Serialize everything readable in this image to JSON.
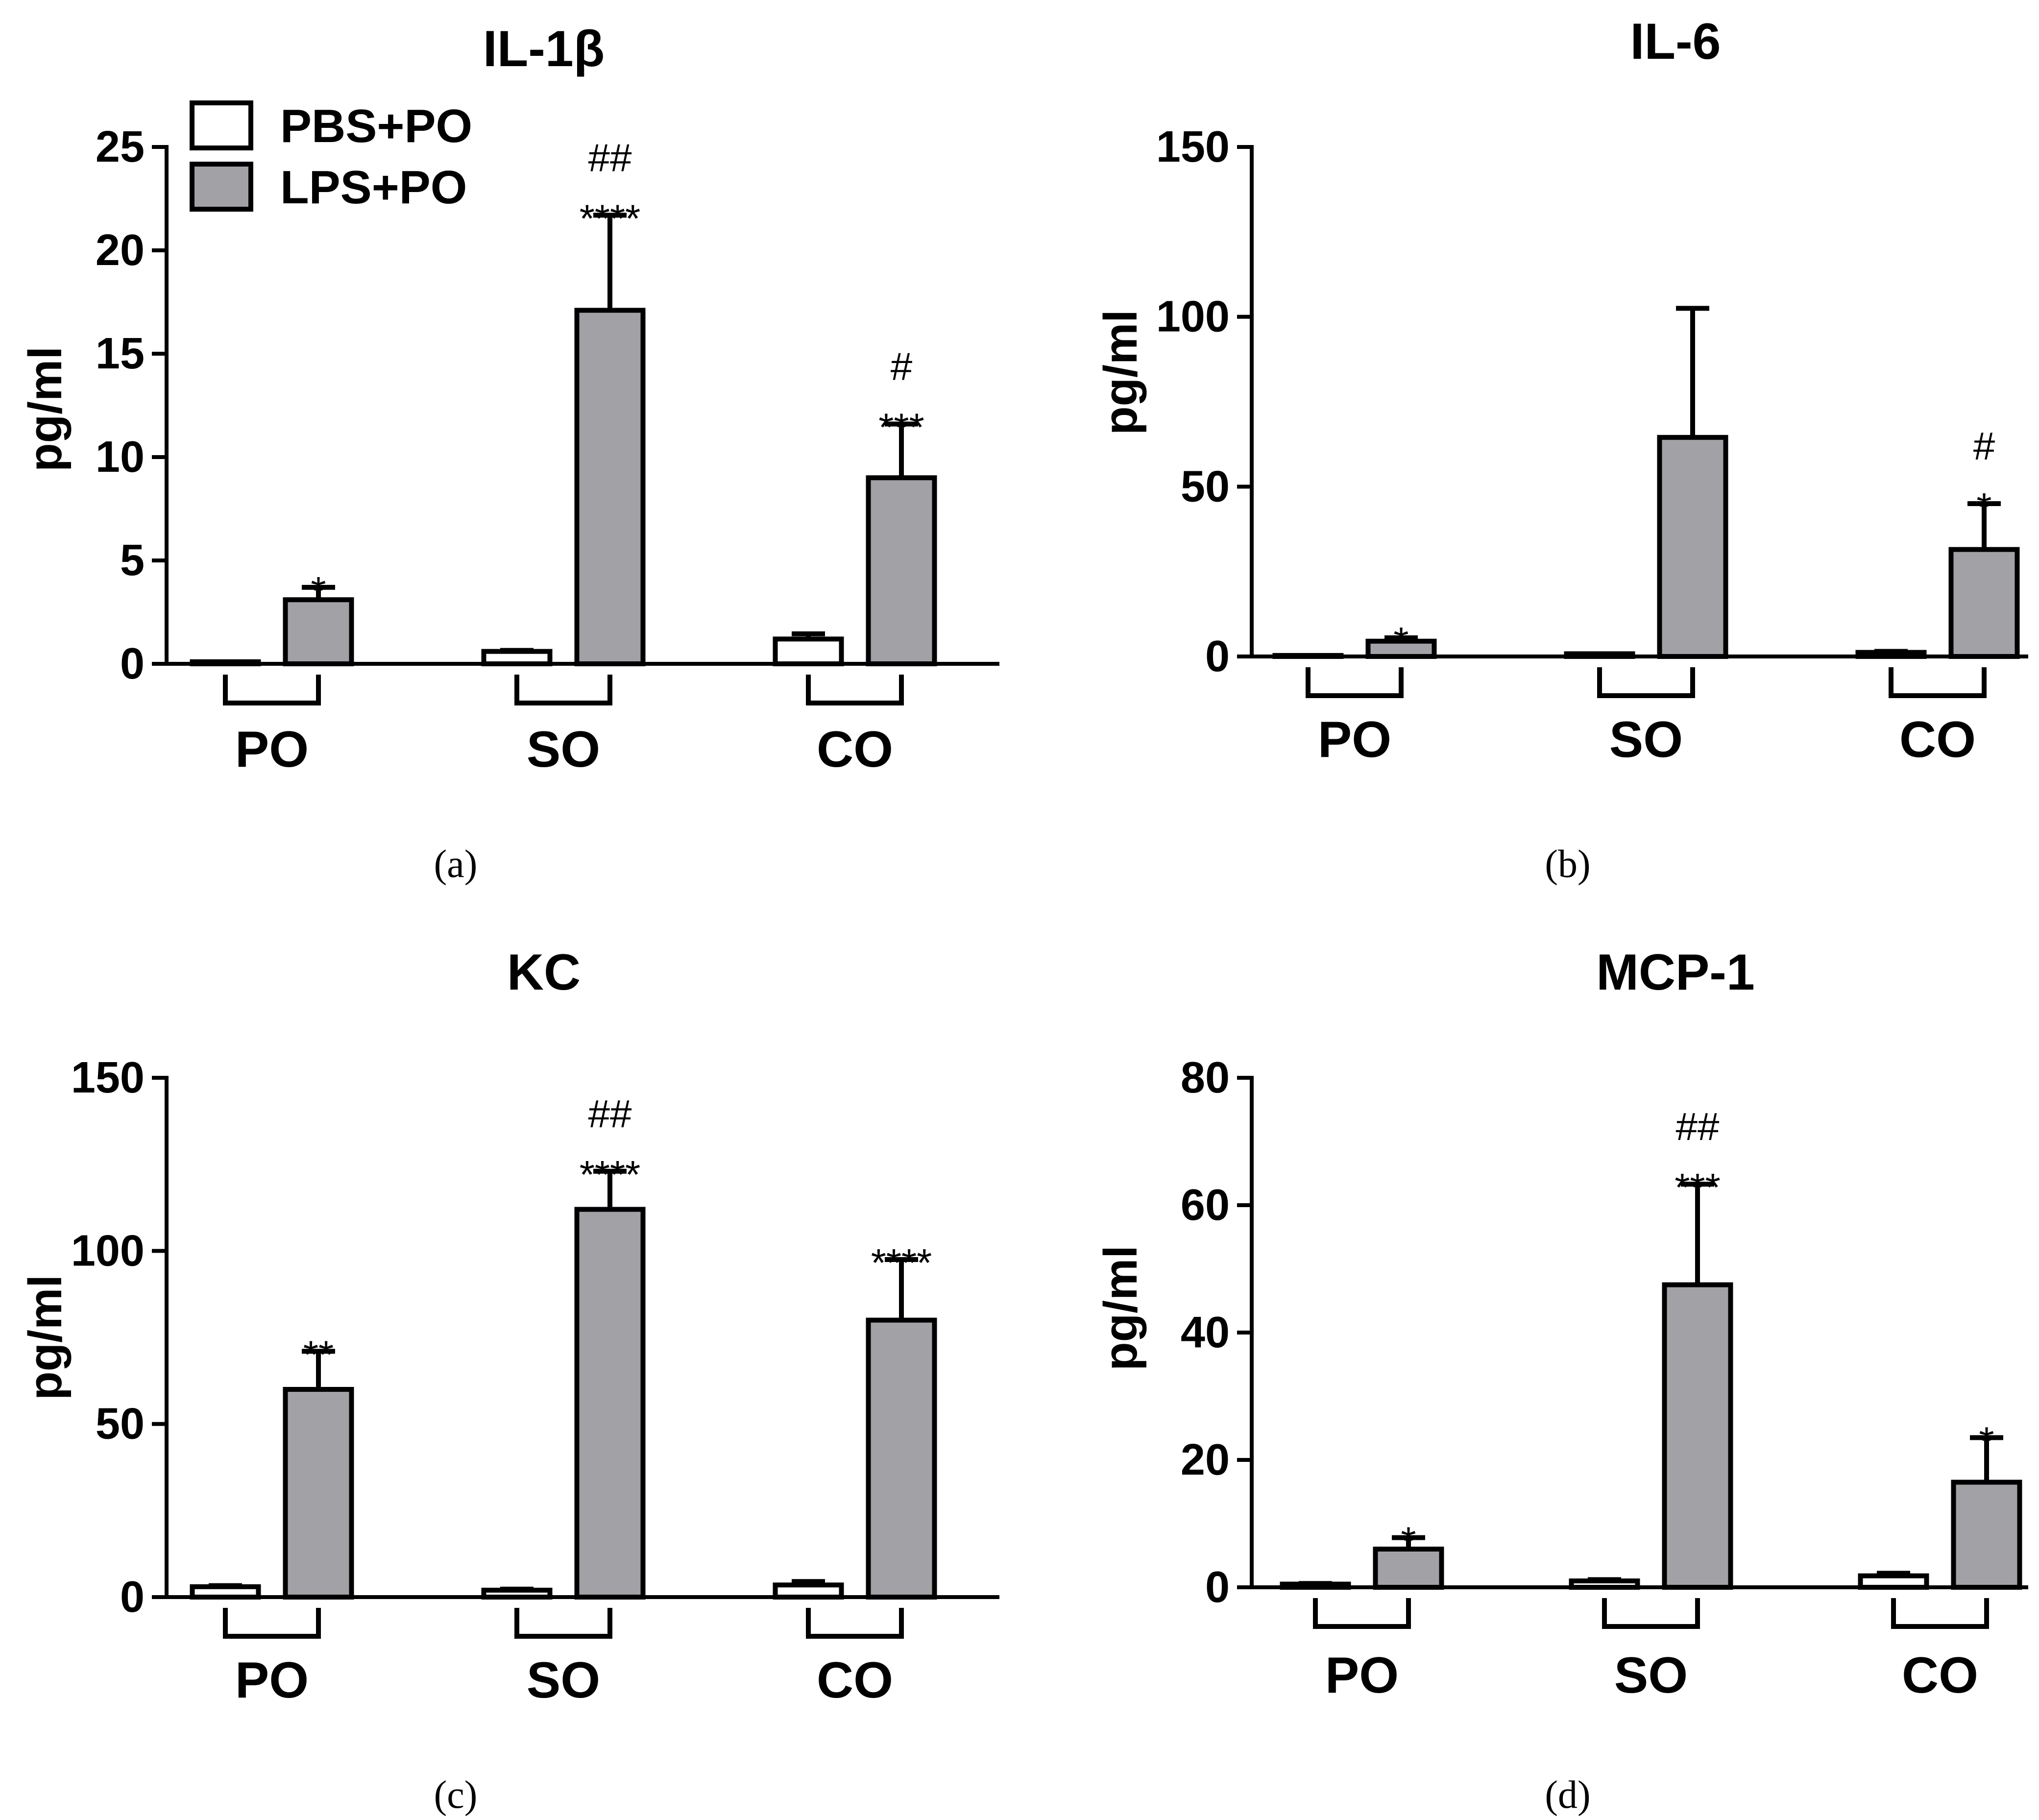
{
  "colors": {
    "pbs": "#ffffff",
    "lps": "#a1a1a6",
    "stroke": "#000000"
  },
  "legend": {
    "items": [
      {
        "label": "PBS+PO"
      },
      {
        "label": "LPS+PO"
      }
    ]
  },
  "chart_data": [
    {
      "type": "bar",
      "panel": "(a)",
      "title": "IL-1β",
      "ylabel": "pg/ml",
      "ylim": [
        0,
        25
      ],
      "yticks": [
        0,
        5,
        10,
        15,
        20,
        25
      ],
      "categories": [
        "PO",
        "SO",
        "CO"
      ],
      "series": [
        {
          "name": "PBS+PO",
          "values": [
            0.1,
            0.6,
            1.2
          ],
          "errors": [
            0,
            0.05,
            0.25
          ]
        },
        {
          "name": "LPS+PO",
          "values": [
            3.1,
            17.1,
            9.0
          ],
          "errors": [
            0.6,
            4.6,
            2.6
          ]
        }
      ],
      "significance": [
        "*",
        "##\n****",
        "#\n***"
      ]
    },
    {
      "type": "bar",
      "panel": "(b)",
      "title": "IL-6",
      "ylabel": "pg/ml",
      "ylim": [
        0,
        150
      ],
      "yticks": [
        0,
        50,
        100,
        150
      ],
      "categories": [
        "PO",
        "SO",
        "CO"
      ],
      "series": [
        {
          "name": "PBS+PO",
          "values": [
            0.3,
            0.8,
            1.2
          ],
          "errors": [
            0,
            0,
            0.3
          ]
        },
        {
          "name": "LPS+PO",
          "values": [
            4.5,
            64.5,
            31.5
          ],
          "errors": [
            1,
            38,
            13.5
          ]
        }
      ],
      "significance": [
        "*",
        "",
        "#\n*"
      ]
    },
    {
      "type": "bar",
      "panel": "(c)",
      "title": "KC",
      "ylabel": "pg/ml",
      "ylim": [
        0,
        150
      ],
      "yticks": [
        0,
        50,
        100,
        150
      ],
      "categories": [
        "PO",
        "SO",
        "CO"
      ],
      "series": [
        {
          "name": "PBS+PO",
          "values": [
            3.0,
            2.0,
            3.5
          ],
          "errors": [
            0.3,
            0.3,
            1.0
          ]
        },
        {
          "name": "LPS+PO",
          "values": [
            60,
            112,
            80
          ],
          "errors": [
            11,
            11,
            17.5
          ]
        }
      ],
      "significance": [
        "**",
        "##\n****",
        "****"
      ]
    },
    {
      "type": "bar",
      "panel": "(d)",
      "title": "MCP-1",
      "ylabel": "pg/ml",
      "ylim": [
        0,
        80
      ],
      "yticks": [
        0,
        20,
        40,
        60,
        80
      ],
      "categories": [
        "PO",
        "SO",
        "CO"
      ],
      "series": [
        {
          "name": "PBS+PO",
          "values": [
            0.5,
            1.0,
            1.8
          ],
          "errors": [
            0.1,
            0.2,
            0.4
          ]
        },
        {
          "name": "LPS+PO",
          "values": [
            6.0,
            47.5,
            16.5
          ],
          "errors": [
            1.8,
            15.8,
            7.0
          ]
        }
      ],
      "significance": [
        "*",
        "##\n***",
        "*"
      ]
    }
  ]
}
